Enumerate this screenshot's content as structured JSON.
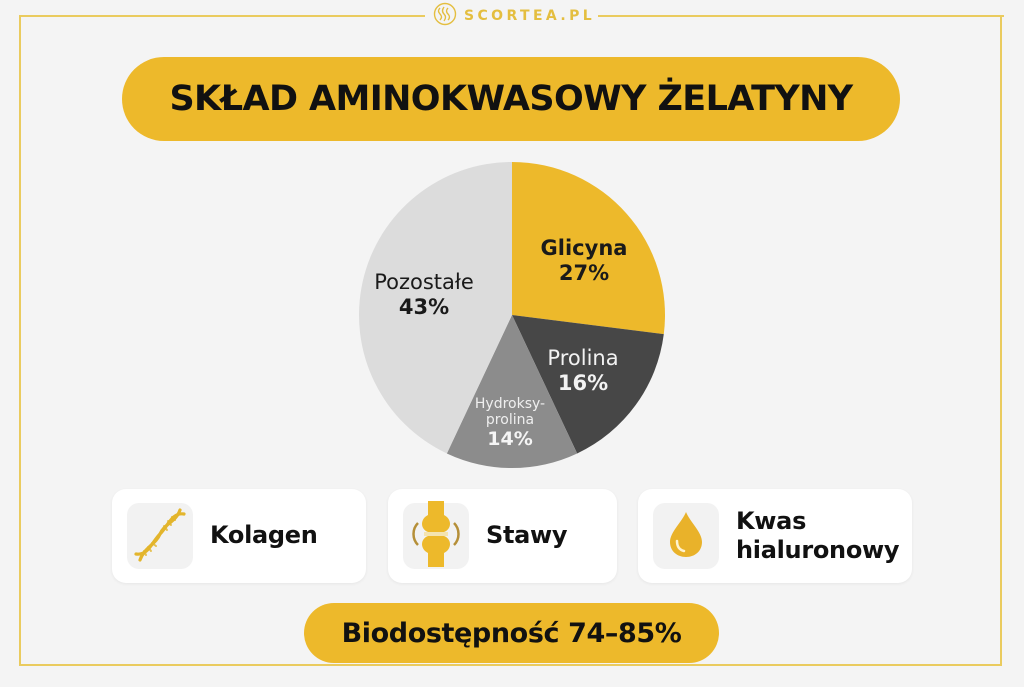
{
  "brand": {
    "name": "SCORTEA.PL",
    "icon": "scortea-logo-icon"
  },
  "title": "SKŁAD AMINOKWASOWY ŻELATYNY",
  "colors": {
    "accent": "#EDB92B",
    "frame": "#EACB5E",
    "background": "#F4F4F4",
    "glicyna": "#EDB92B",
    "prolina": "#474747",
    "hydroksyprolina": "#8C8C8C",
    "pozostale": "#DCDCDC"
  },
  "chart_data": {
    "type": "pie",
    "title": "SKŁAD AMINOKWASOWY ŻELATYNY",
    "categories": [
      "Glicyna",
      "Prolina",
      "Hydroksyprolina",
      "Pozostałe"
    ],
    "values": [
      27,
      16,
      14,
      43
    ],
    "unit": "%",
    "colors": [
      "#EDB92B",
      "#474747",
      "#8C8C8C",
      "#DCDCDC"
    ],
    "start_angle": "12 o'clock, clockwise",
    "legend": "none (inline labels)"
  },
  "pie": {
    "labels": [
      {
        "name": "Glicyna",
        "value": "27%"
      },
      {
        "name": "Prolina",
        "value": "16%"
      },
      {
        "name_line1": "Hydroksy-",
        "name_line2": "prolina",
        "value": "14%"
      },
      {
        "name": "Pozostałe",
        "value": "43%"
      }
    ]
  },
  "cards": [
    {
      "label": "Kolagen",
      "icon": "dna-icon"
    },
    {
      "label": "Stawy",
      "icon": "joint-icon"
    },
    {
      "label_line1": "Kwas",
      "label_line2": "hialuronowy",
      "icon": "droplet-icon"
    }
  ],
  "footer": {
    "label": "Biodostępność 74–85%"
  }
}
